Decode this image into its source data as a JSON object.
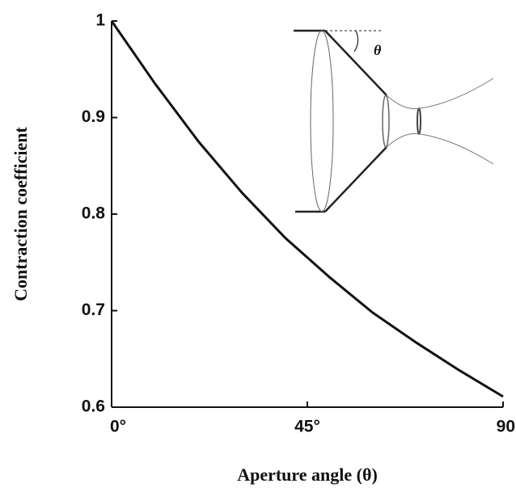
{
  "chart_data": {
    "type": "line",
    "x_label": "Aperture angle (θ)",
    "y_label": "Contraction coefficient",
    "annotations": [
      "θ"
    ],
    "x": [
      0,
      10,
      20,
      30,
      40,
      50,
      60,
      70,
      80,
      90
    ],
    "series": [
      {
        "color": "#111111",
        "values": [
          1.0,
          0.935,
          0.875,
          0.822,
          0.775,
          0.735,
          0.698,
          0.667,
          0.638,
          0.611
        ]
      }
    ],
    "xlim": [
      0,
      90
    ],
    "xticks": [
      {
        "value": 0,
        "label": "0°"
      },
      {
        "value": 45,
        "label": "45°"
      },
      90
    ],
    "ylim": [
      0.6,
      1
    ],
    "yticks": [
      0.6,
      0.7,
      0.8,
      0.9,
      1
    ],
    "grid": false
  }
}
